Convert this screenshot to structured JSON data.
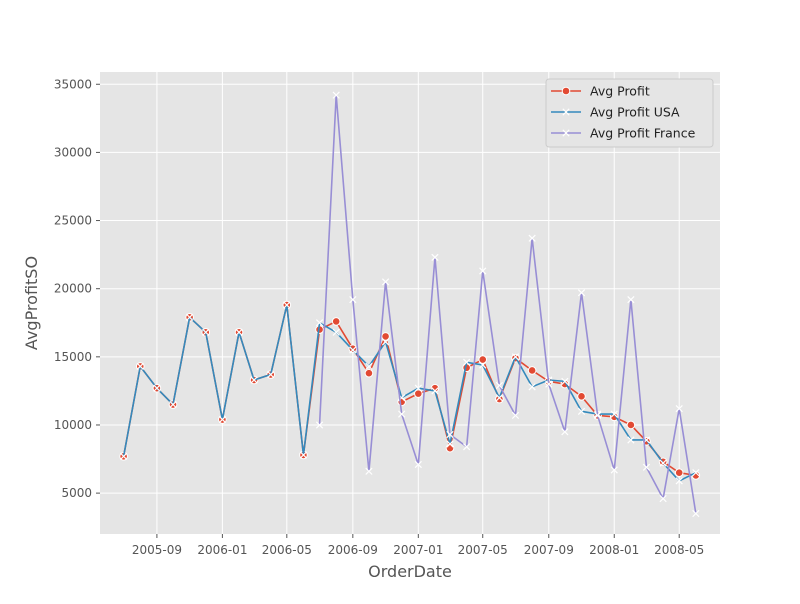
{
  "chart_data": {
    "type": "line",
    "title": "",
    "xlabel": "OrderDate",
    "ylabel": "AvgProfitSO",
    "x_tick_labels": [
      "2005-09",
      "2006-01",
      "2006-05",
      "2006-09",
      "2007-01",
      "2007-05",
      "2007-09",
      "2008-01",
      "2008-05"
    ],
    "y_tick_labels": [
      "5000",
      "10000",
      "15000",
      "20000",
      "25000",
      "30000",
      "35000"
    ],
    "x_ticks": [
      "2005-09-01",
      "2006-01-01",
      "2006-05-01",
      "2006-09-01",
      "2007-01-01",
      "2007-05-01",
      "2007-09-01",
      "2008-01-01",
      "2008-05-01"
    ],
    "y_ticks": [
      5000,
      10000,
      15000,
      20000,
      25000,
      30000,
      35000
    ],
    "xlim": [
      "2005-05-18",
      "2008-07-16"
    ],
    "ylim": [
      2000,
      35900
    ],
    "grid": true,
    "legend_position": "top-right",
    "x": [
      "2005-07-01",
      "2005-08-01",
      "2005-09-01",
      "2005-10-01",
      "2005-11-01",
      "2005-12-01",
      "2006-01-01",
      "2006-02-01",
      "2006-03-01",
      "2006-04-01",
      "2006-05-01",
      "2006-06-01",
      "2006-07-01",
      "2006-08-01",
      "2006-09-01",
      "2006-10-01",
      "2006-11-01",
      "2006-12-01",
      "2007-01-01",
      "2007-02-01",
      "2007-03-01",
      "2007-04-01",
      "2007-05-01",
      "2007-06-01",
      "2007-07-01",
      "2007-08-01",
      "2007-09-01",
      "2007-10-01",
      "2007-11-01",
      "2007-12-01",
      "2008-01-01",
      "2008-02-01",
      "2008-03-01",
      "2008-04-01",
      "2008-05-01",
      "2008-06-01"
    ],
    "series": [
      {
        "name": "Avg Profit",
        "color": "#E24A33",
        "marker": "circle",
        "values": [
          7700,
          14300,
          12700,
          11500,
          17900,
          16800,
          10400,
          16800,
          13300,
          13700,
          18800,
          7800,
          17000,
          17600,
          15600,
          13800,
          16500,
          11700,
          12300,
          12700,
          8300,
          14200,
          14800,
          11900,
          14900,
          14000,
          13200,
          13000,
          12100,
          10700,
          10600,
          10000,
          8800,
          7300,
          6500,
          6300
        ]
      },
      {
        "name": "Avg Profit USA",
        "color": "#348ABD",
        "marker": "x",
        "values": [
          7700,
          14300,
          12700,
          11500,
          17900,
          16800,
          10400,
          16800,
          13300,
          13700,
          18800,
          7800,
          17500,
          16800,
          15500,
          14300,
          16100,
          12000,
          12700,
          12500,
          8600,
          14600,
          14400,
          12000,
          15000,
          12800,
          13300,
          13200,
          11000,
          10800,
          10800,
          8900,
          8900,
          7200,
          5900,
          6500
        ]
      },
      {
        "name": "Avg Profit France",
        "color": "#988ED5",
        "marker": "x",
        "values": [
          null,
          null,
          null,
          null,
          null,
          null,
          null,
          null,
          null,
          null,
          null,
          null,
          10000,
          34200,
          19200,
          6600,
          20500,
          10800,
          7100,
          22300,
          9300,
          8400,
          21300,
          12900,
          10700,
          23700,
          13000,
          9500,
          19700,
          10700,
          6700,
          19200,
          6900,
          4600,
          11200,
          3500
        ]
      }
    ]
  }
}
